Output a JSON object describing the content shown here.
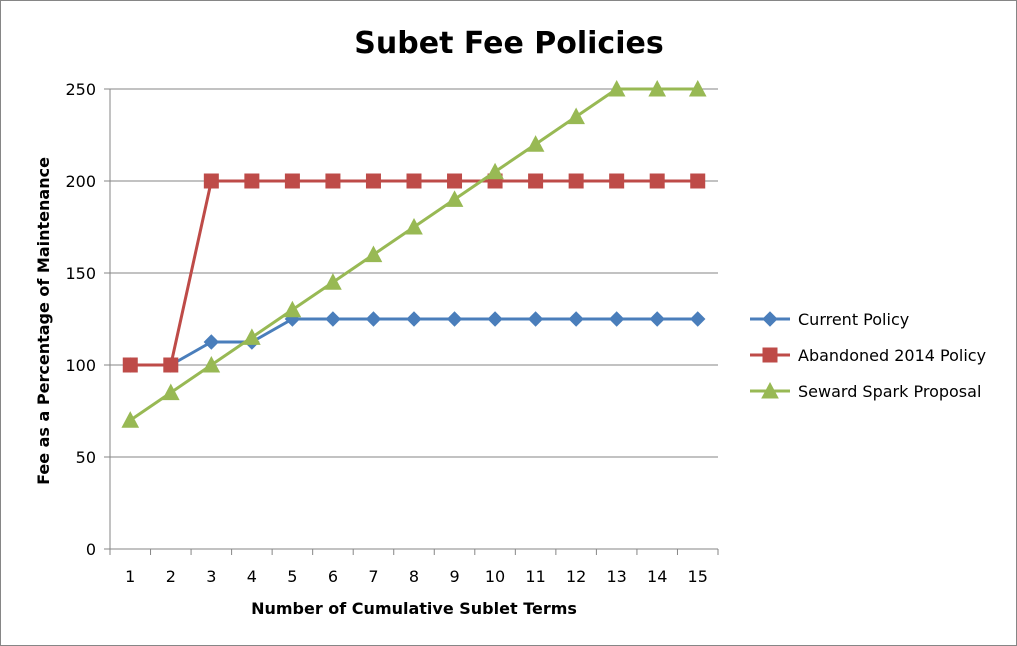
{
  "chart_data": {
    "type": "line",
    "title": "Subet Fee Policies",
    "xlabel": "Number of Cumulative Sublet Terms",
    "ylabel": "Fee as a Percentage of Maintenance",
    "categories": [
      "1",
      "2",
      "3",
      "4",
      "5",
      "6",
      "7",
      "8",
      "9",
      "10",
      "11",
      "12",
      "13",
      "14",
      "15"
    ],
    "ylim": [
      0,
      250
    ],
    "yticks": [
      0,
      50,
      100,
      150,
      200,
      250
    ],
    "grid": true,
    "legend_position": "right",
    "series": [
      {
        "name": "Current Policy",
        "color": "#4a7ebb",
        "marker": "diamond",
        "values": [
          100,
          100,
          112.5,
          112.5,
          125,
          125,
          125,
          125,
          125,
          125,
          125,
          125,
          125,
          125,
          125
        ]
      },
      {
        "name": "Abandoned 2014 Policy",
        "color": "#be4b48",
        "marker": "square",
        "values": [
          100,
          100,
          200,
          200,
          200,
          200,
          200,
          200,
          200,
          200,
          200,
          200,
          200,
          200,
          200
        ]
      },
      {
        "name": "Seward Spark Proposal",
        "color": "#98b954",
        "marker": "triangle",
        "values": [
          70,
          85,
          100,
          115,
          130,
          145,
          160,
          175,
          190,
          205,
          220,
          235,
          250,
          250,
          250
        ]
      }
    ]
  }
}
